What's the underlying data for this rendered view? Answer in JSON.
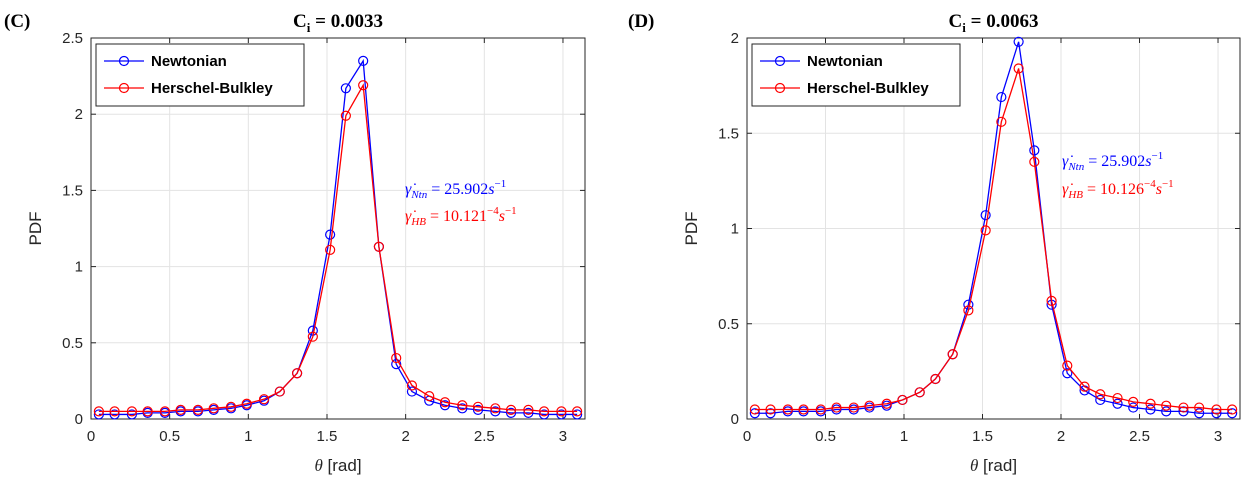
{
  "chart_data": [
    {
      "type": "line",
      "panel_label": "(C)",
      "title": "C",
      "title_sub": "i",
      "title_rest": " = 0.0033",
      "xlabel_symbol": "θ",
      "xlabel_unit": " [rad]",
      "ylabel": "PDF",
      "xlim": [
        0,
        3.14
      ],
      "ylim": [
        0,
        2.5
      ],
      "xticks": [
        0,
        0.5,
        1,
        1.5,
        2,
        2.5,
        3
      ],
      "xtick_labels": [
        "0",
        "0.5",
        "1",
        "1.5",
        "2",
        "2.5",
        "3"
      ],
      "yticks": [
        0,
        0.5,
        1,
        1.5,
        2,
        2.5
      ],
      "ytick_labels": [
        "0",
        "0.5",
        "1",
        "1.5",
        "2",
        "2.5"
      ],
      "grid": true,
      "legend_placement": "top-left",
      "x": [
        0.05,
        0.15,
        0.26,
        0.36,
        0.47,
        0.57,
        0.68,
        0.78,
        0.89,
        0.99,
        1.1,
        1.2,
        1.31,
        1.41,
        1.52,
        1.62,
        1.73,
        1.83,
        1.94,
        2.04,
        2.15,
        2.25,
        2.36,
        2.46,
        2.57,
        2.67,
        2.78,
        2.88,
        2.99,
        3.09
      ],
      "series": [
        {
          "name": "Newtonian",
          "color": "#0000ff",
          "values": [
            0.03,
            0.03,
            0.03,
            0.04,
            0.04,
            0.05,
            0.05,
            0.06,
            0.07,
            0.09,
            0.12,
            0.18,
            0.3,
            0.58,
            1.21,
            2.17,
            2.35,
            1.13,
            0.36,
            0.18,
            0.12,
            0.09,
            0.07,
            0.06,
            0.05,
            0.04,
            0.04,
            0.03,
            0.03,
            0.03
          ]
        },
        {
          "name": "Herschel-Bulkley",
          "color": "#ff0000",
          "values": [
            0.05,
            0.05,
            0.05,
            0.05,
            0.05,
            0.06,
            0.06,
            0.07,
            0.08,
            0.1,
            0.13,
            0.18,
            0.3,
            0.54,
            1.11,
            1.99,
            2.19,
            1.13,
            0.4,
            0.22,
            0.15,
            0.11,
            0.09,
            0.08,
            0.07,
            0.06,
            0.06,
            0.05,
            0.05,
            0.05
          ]
        }
      ],
      "annotations": [
        {
          "prefix": "γ̇",
          "sub": "Ntn",
          "mid": " = 25.902",
          "base": "s",
          "sup": "−1",
          "color": "#0000ff"
        },
        {
          "prefix": "γ̇",
          "sub": "HB",
          "mid": " = 10.121",
          "sup1": "−4",
          "base": "s",
          "sup": "−1",
          "color": "#ff0000"
        }
      ]
    },
    {
      "type": "line",
      "panel_label": "(D)",
      "title": "C",
      "title_sub": "i",
      "title_rest": " = 0.0063",
      "xlabel_symbol": "θ",
      "xlabel_unit": " [rad]",
      "ylabel": "PDF",
      "xlim": [
        0,
        3.14
      ],
      "ylim": [
        0,
        2
      ],
      "xticks": [
        0,
        0.5,
        1,
        1.5,
        2,
        2.5,
        3
      ],
      "xtick_labels": [
        "0",
        "0.5",
        "1",
        "1.5",
        "2",
        "2.5",
        "3"
      ],
      "yticks": [
        0,
        0.5,
        1,
        1.5,
        2
      ],
      "ytick_labels": [
        "0",
        "0.5",
        "1",
        "1.5",
        "2"
      ],
      "grid": true,
      "legend_placement": "top-left",
      "x": [
        0.05,
        0.15,
        0.26,
        0.36,
        0.47,
        0.57,
        0.68,
        0.78,
        0.89,
        0.99,
        1.1,
        1.2,
        1.31,
        1.41,
        1.52,
        1.62,
        1.73,
        1.83,
        1.94,
        2.04,
        2.15,
        2.25,
        2.36,
        2.46,
        2.57,
        2.67,
        2.78,
        2.88,
        2.99,
        3.09
      ],
      "series": [
        {
          "name": "Newtonian",
          "color": "#0000ff",
          "values": [
            0.03,
            0.03,
            0.04,
            0.04,
            0.04,
            0.05,
            0.05,
            0.06,
            0.07,
            0.1,
            0.14,
            0.21,
            0.34,
            0.6,
            1.07,
            1.69,
            1.98,
            1.41,
            0.6,
            0.24,
            0.15,
            0.1,
            0.08,
            0.06,
            0.05,
            0.04,
            0.04,
            0.03,
            0.03,
            0.03
          ]
        },
        {
          "name": "Herschel-Bulkley",
          "color": "#ff0000",
          "values": [
            0.05,
            0.05,
            0.05,
            0.05,
            0.05,
            0.06,
            0.06,
            0.07,
            0.08,
            0.1,
            0.14,
            0.21,
            0.34,
            0.57,
            0.99,
            1.56,
            1.84,
            1.35,
            0.62,
            0.28,
            0.17,
            0.13,
            0.11,
            0.09,
            0.08,
            0.07,
            0.06,
            0.06,
            0.05,
            0.05
          ]
        }
      ],
      "annotations": [
        {
          "prefix": "γ̇",
          "sub": "Ntn",
          "mid": " = 25.902",
          "base": "s",
          "sup": "−1",
          "color": "#0000ff"
        },
        {
          "prefix": "γ̇",
          "sub": "HB",
          "mid": " = 10.126",
          "sup1": "−4",
          "base": "s",
          "sup": "−1",
          "color": "#ff0000"
        }
      ]
    }
  ]
}
